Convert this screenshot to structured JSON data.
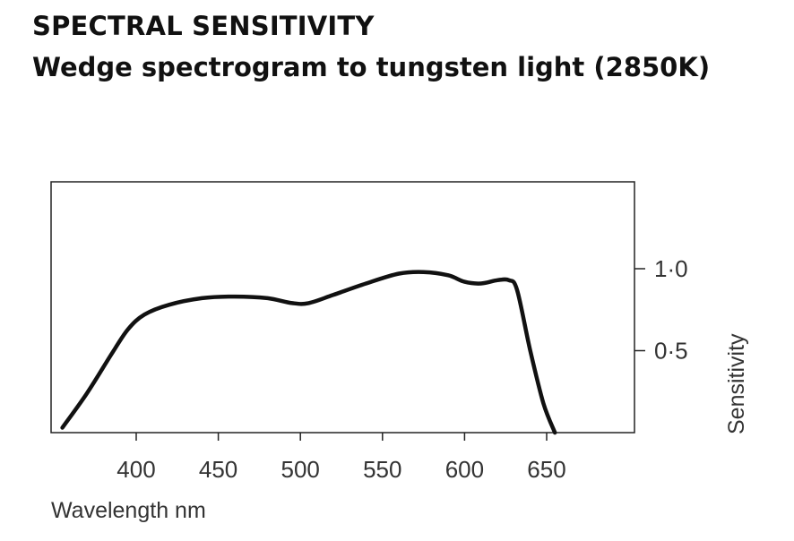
{
  "chart_data": {
    "type": "line",
    "title": "SPECTRAL SENSITIVITY",
    "subtitle": "Wedge spectrogram to tungsten light (2850K)",
    "xlabel": "Wavelength nm",
    "ylabel": "Sensitivity",
    "xlim": [
      350,
      700
    ],
    "ylim": [
      0,
      1.5
    ],
    "x_ticks": [
      400,
      450,
      500,
      550,
      600,
      650
    ],
    "x_tick_labels": [
      "400",
      "450",
      "500",
      "550",
      "600",
      "650"
    ],
    "y_ticks": [
      0.5,
      1.0
    ],
    "y_tick_labels": [
      "0·5",
      "1·0"
    ],
    "y_axis_position": "right",
    "grid": false,
    "series": [
      {
        "color": "#111111",
        "x": [
          355,
          370,
          385,
          395,
          405,
          420,
          440,
          460,
          480,
          495,
          505,
          520,
          540,
          560,
          575,
          590,
          600,
          610,
          620,
          627,
          632,
          640,
          648,
          655
        ],
        "y": [
          0.03,
          0.24,
          0.48,
          0.63,
          0.72,
          0.78,
          0.82,
          0.83,
          0.82,
          0.79,
          0.79,
          0.84,
          0.91,
          0.97,
          0.98,
          0.96,
          0.92,
          0.91,
          0.93,
          0.93,
          0.87,
          0.5,
          0.18,
          0.0
        ]
      }
    ]
  }
}
